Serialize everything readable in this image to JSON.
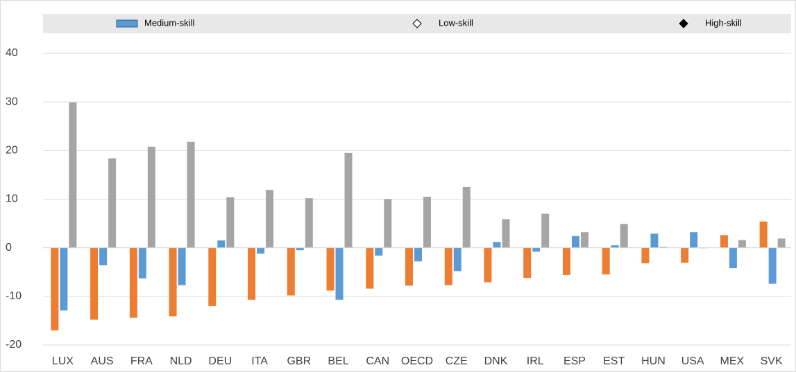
{
  "chart_data": {
    "type": "bar",
    "categories": [
      "LUX",
      "AUS",
      "FRA",
      "NLD",
      "DEU",
      "ITA",
      "GBR",
      "BEL",
      "CAN",
      "OECD",
      "CZE",
      "DNK",
      "IRL",
      "ESP",
      "EST",
      "HUN",
      "USA",
      "MEX",
      "SVK"
    ],
    "series": [
      {
        "name": "Low-skill",
        "color": "#ED7D31",
        "marker": "diamond-open",
        "values": [
          -17,
          -14.8,
          -14.4,
          -14.1,
          -12,
          -10.7,
          -9.8,
          -8.8,
          -8.4,
          -7.8,
          -7.7,
          -7.1,
          -6.2,
          -5.6,
          -5.5,
          -3.2,
          -3.1,
          2.6,
          5.4
        ]
      },
      {
        "name": "Medium-skill",
        "color": "#5B9BD5",
        "marker": "rect",
        "values": [
          -12.9,
          -3.6,
          -6.3,
          -7.7,
          1.5,
          -1.2,
          -0.5,
          -10.7,
          -1.6,
          -2.8,
          -4.8,
          1.2,
          -0.8,
          2.4,
          0.5,
          2.9,
          3.2,
          -4.2,
          -7.4
        ]
      },
      {
        "name": "High-skill",
        "color": "#A5A5A5",
        "marker": "diamond",
        "values": [
          29.9,
          18.4,
          20.8,
          21.8,
          10.4,
          11.9,
          10.2,
          19.5,
          10.0,
          10.5,
          12.5,
          5.9,
          7.0,
          3.2,
          4.9,
          0.2,
          -0.1,
          1.6,
          1.9
        ]
      }
    ],
    "ylim": [
      -20,
      40
    ],
    "yticks": [
      -20,
      -10,
      0,
      10,
      20,
      30,
      40
    ],
    "grid": true
  }
}
